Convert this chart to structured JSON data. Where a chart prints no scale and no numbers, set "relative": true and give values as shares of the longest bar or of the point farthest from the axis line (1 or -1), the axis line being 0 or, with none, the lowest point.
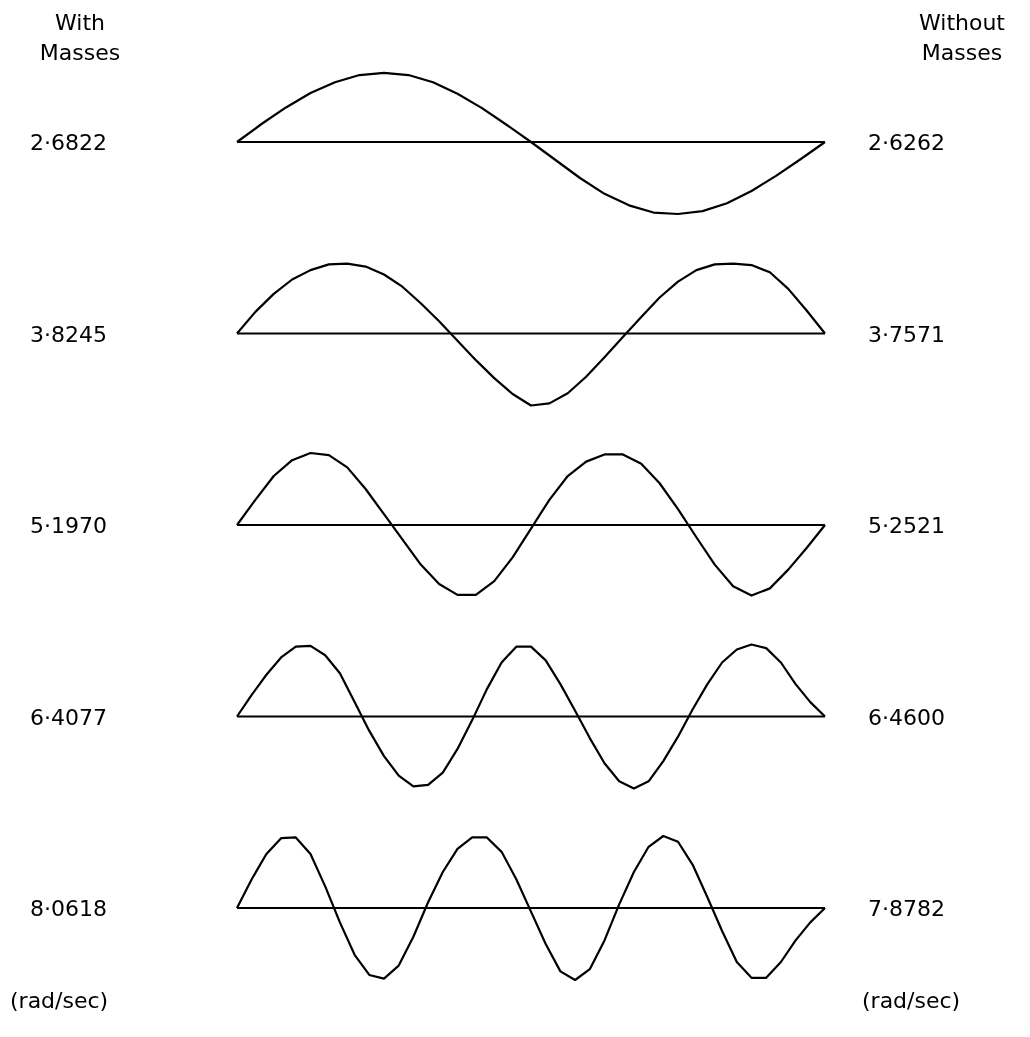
{
  "chart_data": [
    {
      "type": "line",
      "relative": true,
      "annotations": [
        "With Masses",
        "Without Masses",
        "2·6822",
        "2·6262"
      ],
      "categories": [
        null,
        null,
        null,
        null,
        null,
        null,
        null,
        null,
        null,
        null,
        null,
        null,
        null,
        null,
        null,
        null,
        null,
        null,
        null,
        null,
        null,
        null,
        null,
        null,
        null
      ],
      "series": [
        {
          "color": "#000000",
          "values": [
            0,
            0.25,
            0.48,
            0.68,
            0.83,
            0.93,
            0.96,
            0.93,
            0.83,
            0.67,
            0.47,
            0.24,
            0,
            -0.25,
            -0.5,
            -0.72,
            -0.88,
            -0.98,
            -1,
            -0.96,
            -0.85,
            -0.68,
            -0.47,
            -0.24,
            0
          ]
        }
      ]
    },
    {
      "type": "line",
      "relative": true,
      "annotations": [
        "3·8245",
        "3·7571"
      ],
      "categories": [
        null,
        null,
        null,
        null,
        null,
        null,
        null,
        null,
        null,
        null,
        null,
        null,
        null,
        null,
        null,
        null,
        null,
        null,
        null,
        null,
        null,
        null,
        null,
        null,
        null,
        null,
        null,
        null,
        null,
        null,
        null,
        null,
        null
      ],
      "series": [
        {
          "color": "#000000",
          "values": [
            0,
            0.3,
            0.55,
            0.75,
            0.88,
            0.96,
            0.97,
            0.93,
            0.82,
            0.65,
            0.42,
            0.17,
            -0.1,
            -0.37,
            -0.62,
            -0.84,
            -1,
            -0.97,
            -0.83,
            -0.6,
            -0.33,
            -0.05,
            0.23,
            0.5,
            0.72,
            0.88,
            0.96,
            0.97,
            0.95,
            0.85,
            0.62,
            0.32,
            0
          ]
        }
      ]
    },
    {
      "type": "line",
      "relative": true,
      "annotations": [
        "5·1970",
        "5·2521"
      ],
      "categories": [
        null,
        null,
        null,
        null,
        null,
        null,
        null,
        null,
        null,
        null,
        null,
        null,
        null,
        null,
        null,
        null,
        null,
        null,
        null,
        null,
        null,
        null,
        null,
        null,
        null,
        null,
        null,
        null,
        null,
        null,
        null,
        null,
        null
      ],
      "series": [
        {
          "color": "#000000",
          "values": [
            0,
            0.35,
            0.68,
            0.9,
            1,
            0.97,
            0.8,
            0.5,
            0.15,
            -0.2,
            -0.55,
            -0.82,
            -0.97,
            -0.97,
            -0.78,
            -0.45,
            -0.05,
            0.35,
            0.68,
            0.88,
            0.98,
            0.98,
            0.85,
            0.58,
            0.22,
            -0.17,
            -0.55,
            -0.85,
            -0.98,
            -0.88,
            -0.62,
            -0.32,
            0
          ]
        }
      ]
    },
    {
      "type": "line",
      "relative": true,
      "annotations": [
        "6·4077",
        "6·4600"
      ],
      "categories": [
        null,
        null,
        null,
        null,
        null,
        null,
        null,
        null,
        null,
        null,
        null,
        null,
        null,
        null,
        null,
        null,
        null,
        null,
        null,
        null,
        null,
        null,
        null,
        null,
        null,
        null,
        null,
        null,
        null,
        null,
        null,
        null,
        null,
        null,
        null,
        null,
        null,
        null,
        null,
        null,
        null
      ],
      "series": [
        {
          "color": "#000000",
          "values": [
            0,
            0.3,
            0.58,
            0.82,
            0.97,
            0.98,
            0.85,
            0.6,
            0.2,
            -0.2,
            -0.55,
            -0.82,
            -0.97,
            -0.95,
            -0.78,
            -0.45,
            -0.05,
            0.38,
            0.75,
            0.97,
            0.97,
            0.78,
            0.45,
            0.08,
            -0.3,
            -0.65,
            -0.9,
            -1,
            -0.9,
            -0.62,
            -0.28,
            0.1,
            0.45,
            0.75,
            0.93,
            1,
            0.95,
            0.75,
            0.45,
            0.2,
            0
          ]
        }
      ]
    },
    {
      "type": "line",
      "relative": true,
      "annotations": [
        "8·0618",
        "7·8782",
        "(rad/sec)",
        "(rad/sec)"
      ],
      "categories": [
        null,
        null,
        null,
        null,
        null,
        null,
        null,
        null,
        null,
        null,
        null,
        null,
        null,
        null,
        null,
        null,
        null,
        null,
        null,
        null,
        null,
        null,
        null,
        null,
        null,
        null,
        null,
        null,
        null,
        null,
        null,
        null,
        null,
        null,
        null,
        null,
        null,
        null,
        null,
        null,
        null
      ],
      "series": [
        {
          "color": "#000000",
          "values": [
            0,
            0.4,
            0.75,
            0.97,
            0.98,
            0.75,
            0.3,
            -0.2,
            -0.65,
            -0.93,
            -0.98,
            -0.8,
            -0.4,
            0.08,
            0.5,
            0.82,
            0.98,
            0.98,
            0.78,
            0.4,
            -0.05,
            -0.5,
            -0.88,
            -1,
            -0.85,
            -0.45,
            0.05,
            0.5,
            0.85,
            1,
            0.92,
            0.6,
            0.15,
            -0.32,
            -0.75,
            -0.97,
            -0.97,
            -0.75,
            -0.45,
            -0.2,
            0
          ]
        }
      ]
    }
  ]
}
